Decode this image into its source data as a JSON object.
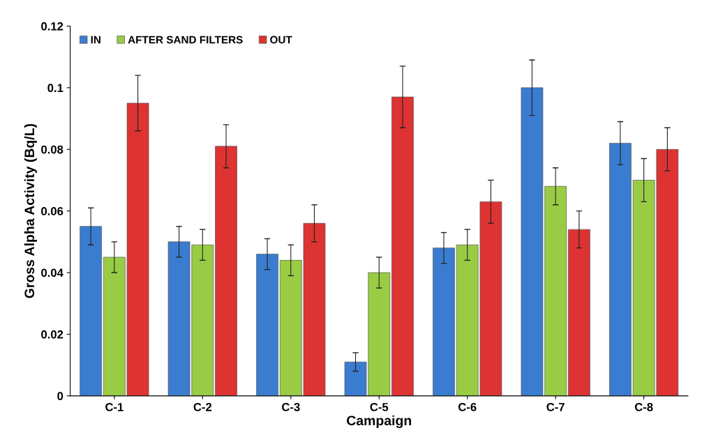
{
  "chart_data": {
    "type": "bar",
    "xlabel": "Campaign",
    "ylabel": "Gross Alpha Activity (Bq/L)",
    "categories": [
      "C-1",
      "C-2",
      "C-3",
      "C-5",
      "C-6",
      "C-7",
      "C-8"
    ],
    "series": [
      {
        "name": "IN",
        "color": "#3a7dd0",
        "values": [
          0.055,
          0.05,
          0.046,
          0.011,
          0.048,
          0.1,
          0.082
        ],
        "errors": [
          0.006,
          0.005,
          0.005,
          0.003,
          0.005,
          0.009,
          0.007
        ]
      },
      {
        "name": "AFTER SAND FILTERS",
        "color": "#99cc44",
        "values": [
          0.045,
          0.049,
          0.044,
          0.04,
          0.049,
          0.068,
          0.07
        ],
        "errors": [
          0.005,
          0.005,
          0.005,
          0.005,
          0.005,
          0.006,
          0.007
        ]
      },
      {
        "name": "OUT",
        "color": "#dd3333",
        "values": [
          0.095,
          0.081,
          0.056,
          0.097,
          0.063,
          0.054,
          0.08
        ],
        "errors": [
          0.009,
          0.007,
          0.006,
          0.01,
          0.007,
          0.006,
          0.007
        ]
      }
    ],
    "ylim": [
      0,
      0.12
    ],
    "yticks": [
      0,
      0.02,
      0.04,
      0.06,
      0.08,
      0.1,
      0.12
    ],
    "grid": false,
    "legend": "top left"
  }
}
